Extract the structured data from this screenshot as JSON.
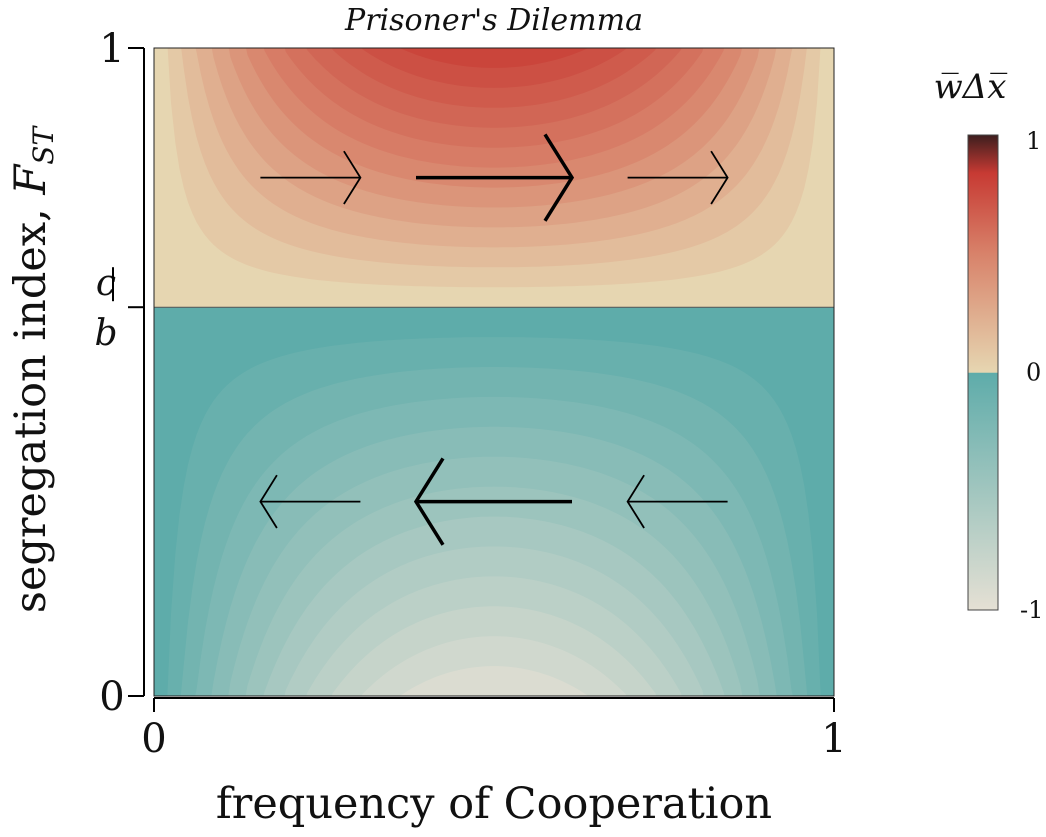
{
  "chart_data": {
    "type": "heatmap",
    "title": "Prisoner's Dilemma",
    "xlabel": "frequency of Cooperation",
    "ylabel": "segregation index, ",
    "ylabel_symbol": "F",
    "ylabel_subscript": "ST",
    "xlim": [
      0,
      1
    ],
    "ylim": [
      0,
      1
    ],
    "x_ticks": [
      "0",
      "1"
    ],
    "y_ticks": [
      "0",
      "1"
    ],
    "threshold": {
      "value": 0.6,
      "numerator": "c",
      "denominator": "b"
    },
    "field": {
      "function": "x*(1-x)*(F - c/b)",
      "contour_levels": 12
    },
    "arrows": [
      {
        "x": 0.23,
        "y": 0.8,
        "direction": "right",
        "magnitude": 0.7
      },
      {
        "x": 0.5,
        "y": 0.8,
        "direction": "right",
        "magnitude": 1.0
      },
      {
        "x": 0.77,
        "y": 0.8,
        "direction": "right",
        "magnitude": 0.7
      },
      {
        "x": 0.23,
        "y": 0.3,
        "direction": "left",
        "magnitude": 0.7
      },
      {
        "x": 0.5,
        "y": 0.3,
        "direction": "left",
        "magnitude": 1.0
      },
      {
        "x": 0.77,
        "y": 0.3,
        "direction": "left",
        "magnitude": 0.7
      }
    ],
    "colorbar": {
      "title": "w̅Δx̅",
      "ticks": [
        "1",
        "0",
        "-1"
      ],
      "range": [
        -1,
        1
      ],
      "colors": {
        "negative_low": "#e5e0d4",
        "negative_high": "#5eacaa",
        "positive_low": "#e6d6b1",
        "positive_mid": "#d8826a",
        "positive_high": "#c73a33",
        "positive_top": "#3d1e1e"
      }
    }
  }
}
